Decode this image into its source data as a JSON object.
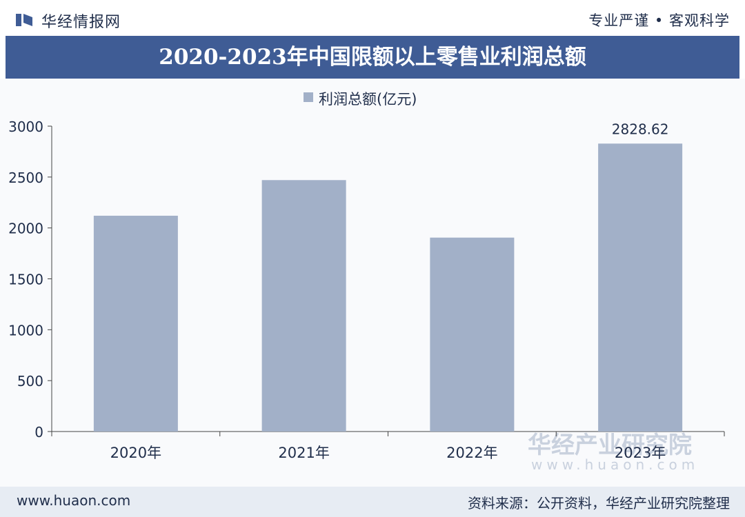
{
  "header": {
    "brand": "华经情报网",
    "slogan": "专业严谨 • 客观科学",
    "title": "2020-2023年中国限额以上零售业利润总额"
  },
  "footer": {
    "url": "www.huaon.com",
    "source": "资料来源：公开资料，华经产业研究院整理"
  },
  "watermark": {
    "name": "华经产业研究院",
    "url": "www.huaon.com"
  },
  "colors": {
    "brand": "#3f5c95",
    "bar": "#a2b0c8",
    "text": "#1f2d4a"
  },
  "chart_data": {
    "type": "bar",
    "categories": [
      "2020年",
      "2021年",
      "2022年",
      "2023年"
    ],
    "series": [
      {
        "name": "利润总额(亿元)",
        "values": [
          2120,
          2470,
          1905,
          2828.62
        ]
      }
    ],
    "data_labels": [
      "",
      "",
      "",
      "2828.62"
    ],
    "yticks": [
      "0",
      "500",
      "1000",
      "1500",
      "2000",
      "2500",
      "3000"
    ],
    "ylim": [
      0,
      3000
    ],
    "legend": "top-center",
    "grid": false
  }
}
